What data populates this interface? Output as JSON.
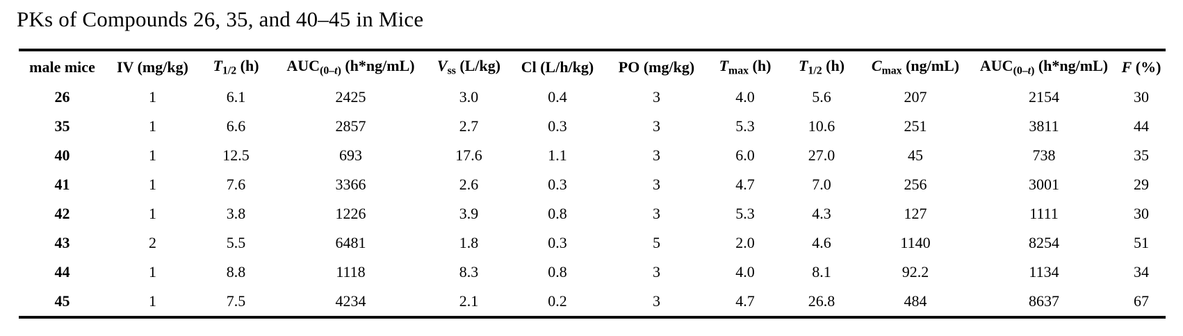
{
  "title": "PKs of Compounds 26, 35, and 40–45 in Mice",
  "text_color": "#000000",
  "rule_color": "#0a0a0a",
  "background_color": "#ffffff",
  "table": {
    "columns": [
      {
        "name": "male-mice",
        "segments": [
          {
            "text": "male mice"
          }
        ]
      },
      {
        "name": "iv-dose",
        "segments": [
          {
            "text": "IV (mg/kg)"
          }
        ]
      },
      {
        "name": "iv-t-half",
        "segments": [
          {
            "text": "T",
            "italic": true
          },
          {
            "text": "1/2",
            "sub": true
          },
          {
            "text": " (h)"
          }
        ]
      },
      {
        "name": "iv-auc",
        "segments": [
          {
            "text": "AUC"
          },
          {
            "text": "(0–",
            "sub": true
          },
          {
            "text": "t",
            "sub": true,
            "italic": true
          },
          {
            "text": ")",
            "sub": true
          },
          {
            "text": " (h*ng/mL)"
          }
        ]
      },
      {
        "name": "vss",
        "segments": [
          {
            "text": "V",
            "italic": true
          },
          {
            "text": "ss",
            "sub": true
          },
          {
            "text": " (L/kg)"
          }
        ]
      },
      {
        "name": "cl",
        "segments": [
          {
            "text": "Cl (L/h/kg)"
          }
        ]
      },
      {
        "name": "po-dose",
        "segments": [
          {
            "text": "PO (mg/kg)"
          }
        ]
      },
      {
        "name": "tmax",
        "segments": [
          {
            "text": "T",
            "italic": true
          },
          {
            "text": "max",
            "sub": true
          },
          {
            "text": " (h)"
          }
        ]
      },
      {
        "name": "po-t-half",
        "segments": [
          {
            "text": "T",
            "italic": true
          },
          {
            "text": "1/2",
            "sub": true
          },
          {
            "text": " (h)"
          }
        ]
      },
      {
        "name": "cmax",
        "segments": [
          {
            "text": "C",
            "italic": true
          },
          {
            "text": "max",
            "sub": true
          },
          {
            "text": " (ng/mL)"
          }
        ]
      },
      {
        "name": "po-auc",
        "segments": [
          {
            "text": "AUC"
          },
          {
            "text": "(0–",
            "sub": true
          },
          {
            "text": "t",
            "sub": true,
            "italic": true
          },
          {
            "text": ")",
            "sub": true
          },
          {
            "text": " (h*ng/mL)"
          }
        ]
      },
      {
        "name": "f-percent",
        "segments": [
          {
            "text": "F",
            "italic": true
          },
          {
            "text": " (%)"
          }
        ]
      }
    ],
    "rows": [
      {
        "compound": "26",
        "values": [
          "1",
          "6.1",
          "2425",
          "3.0",
          "0.4",
          "3",
          "4.0",
          "5.6",
          "207",
          "2154",
          "30"
        ]
      },
      {
        "compound": "35",
        "values": [
          "1",
          "6.6",
          "2857",
          "2.7",
          "0.3",
          "3",
          "5.3",
          "10.6",
          "251",
          "3811",
          "44"
        ]
      },
      {
        "compound": "40",
        "values": [
          "1",
          "12.5",
          "693",
          "17.6",
          "1.1",
          "3",
          "6.0",
          "27.0",
          "45",
          "738",
          "35"
        ]
      },
      {
        "compound": "41",
        "values": [
          "1",
          "7.6",
          "3366",
          "2.6",
          "0.3",
          "3",
          "4.7",
          "7.0",
          "256",
          "3001",
          "29"
        ]
      },
      {
        "compound": "42",
        "values": [
          "1",
          "3.8",
          "1226",
          "3.9",
          "0.8",
          "3",
          "5.3",
          "4.3",
          "127",
          "1111",
          "30"
        ]
      },
      {
        "compound": "43",
        "values": [
          "2",
          "5.5",
          "6481",
          "1.8",
          "0.3",
          "5",
          "2.0",
          "4.6",
          "1140",
          "8254",
          "51"
        ]
      },
      {
        "compound": "44",
        "values": [
          "1",
          "8.8",
          "1118",
          "8.3",
          "0.8",
          "3",
          "4.0",
          "8.1",
          "92.2",
          "1134",
          "34"
        ]
      },
      {
        "compound": "45",
        "values": [
          "1",
          "7.5",
          "4234",
          "2.1",
          "0.2",
          "3",
          "4.7",
          "26.8",
          "484",
          "8637",
          "67"
        ]
      }
    ]
  }
}
